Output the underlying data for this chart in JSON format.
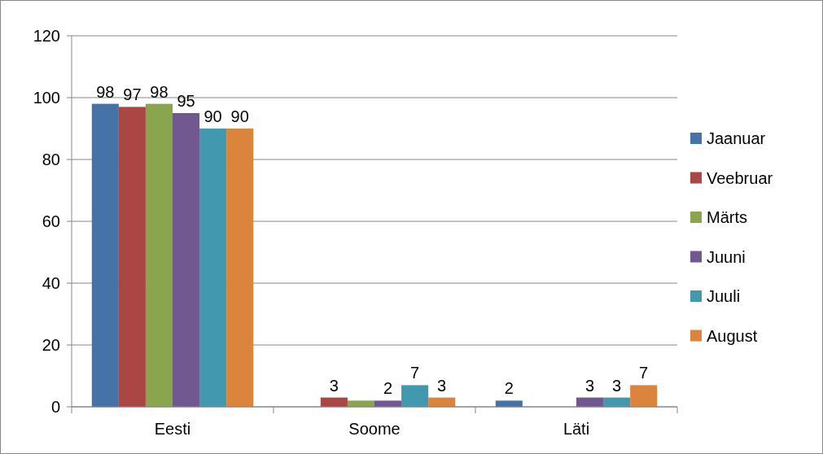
{
  "chart_data": {
    "type": "bar",
    "categories": [
      "Eesti",
      "Soome",
      "Läti"
    ],
    "series": [
      {
        "name": "Jaanuar",
        "color": "#4572a7",
        "values": [
          98,
          0,
          2
        ],
        "value_labels": [
          "98",
          null,
          "2"
        ]
      },
      {
        "name": "Veebruar",
        "color": "#aa4643",
        "values": [
          97,
          3,
          0
        ],
        "value_labels": [
          "97",
          "3",
          null
        ]
      },
      {
        "name": "Märts",
        "color": "#89a54e",
        "values": [
          98,
          2,
          0
        ],
        "value_labels": [
          "98",
          null,
          null
        ]
      },
      {
        "name": "Juuni",
        "color": "#71588f",
        "values": [
          95,
          2,
          3
        ],
        "value_labels": [
          "95",
          "2",
          "3"
        ]
      },
      {
        "name": "Juuli",
        "color": "#4198af",
        "values": [
          90,
          7,
          3
        ],
        "value_labels": [
          "90",
          "7",
          "3"
        ]
      },
      {
        "name": "August",
        "color": "#db843d",
        "values": [
          90,
          3,
          7
        ],
        "value_labels": [
          "90",
          "3",
          "7"
        ]
      }
    ],
    "ylim": [
      0,
      120
    ],
    "yticks": [
      0,
      20,
      40,
      60,
      80,
      100,
      120
    ],
    "grid": "y",
    "legend": "right"
  }
}
